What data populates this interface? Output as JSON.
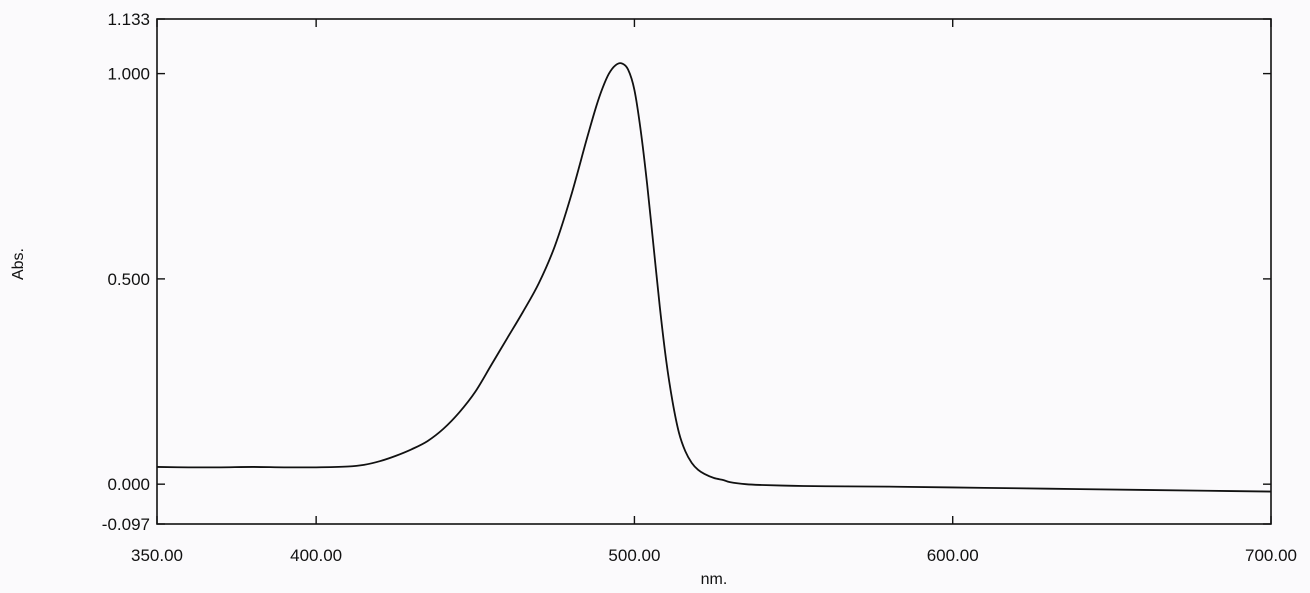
{
  "chart_data": {
    "type": "line",
    "xlabel": "nm.",
    "ylabel": "Abs.",
    "xlim": [
      350.0,
      700.0
    ],
    "ylim": [
      -0.097,
      1.133
    ],
    "x_ticks": [
      {
        "value": 350.0,
        "label": "350.00"
      },
      {
        "value": 400.0,
        "label": "400.00"
      },
      {
        "value": 500.0,
        "label": "500.00"
      },
      {
        "value": 600.0,
        "label": "600.00"
      },
      {
        "value": 700.0,
        "label": "700.00"
      }
    ],
    "y_ticks": [
      {
        "value": 1.133,
        "label": "1.133"
      },
      {
        "value": 1.0,
        "label": "1.000"
      },
      {
        "value": 0.5,
        "label": "0.500"
      },
      {
        "value": 0.0,
        "label": "0.000"
      },
      {
        "value": -0.097,
        "label": "-0.097"
      }
    ],
    "grid": false,
    "series": [
      {
        "color": "#111111",
        "x": [
          350,
          360,
          370,
          380,
          390,
          400,
          410,
          415,
          420,
          425,
          430,
          435,
          440,
          445,
          450,
          455,
          460,
          465,
          470,
          475,
          480,
          485,
          488,
          490,
          492,
          494,
          496,
          498,
          500,
          502,
          504,
          506,
          508,
          510,
          512,
          514,
          516,
          518,
          520,
          522,
          525,
          528,
          530,
          535,
          540,
          550,
          560,
          580,
          600,
          620,
          640,
          660,
          680,
          700
        ],
        "y": [
          0.042,
          0.041,
          0.041,
          0.042,
          0.041,
          0.041,
          0.043,
          0.047,
          0.056,
          0.069,
          0.085,
          0.105,
          0.135,
          0.175,
          0.225,
          0.29,
          0.355,
          0.42,
          0.49,
          0.58,
          0.7,
          0.84,
          0.92,
          0.965,
          1.0,
          1.02,
          1.025,
          1.01,
          0.96,
          0.86,
          0.73,
          0.58,
          0.43,
          0.3,
          0.2,
          0.125,
          0.08,
          0.052,
          0.035,
          0.025,
          0.015,
          0.01,
          0.005,
          0.0,
          -0.002,
          -0.004,
          -0.005,
          -0.006,
          -0.008,
          -0.01,
          -0.012,
          -0.014,
          -0.016,
          -0.018
        ]
      }
    ]
  }
}
